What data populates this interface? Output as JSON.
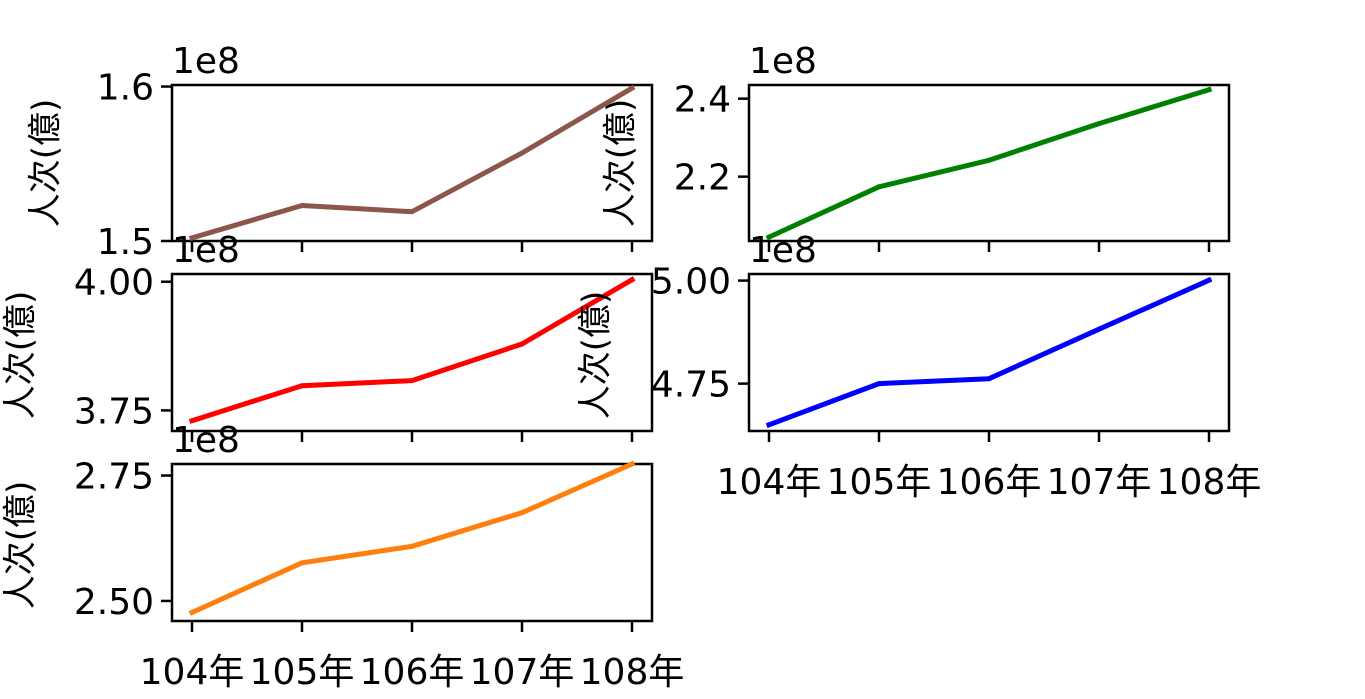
{
  "chart_data": [
    {
      "type": "line",
      "x": [
        "104年",
        "105年",
        "106年",
        "107年",
        "108年"
      ],
      "series": [
        {
          "values": [
            150200000,
            152300000,
            151900000,
            155700000,
            159900000
          ]
        }
      ],
      "color": "#8c564b",
      "ylabel": "人次(億)",
      "offset_text": "1e8",
      "yticks": [
        {
          "value": 150000000,
          "label": "1.5"
        },
        {
          "value": 160000000,
          "label": "1.6"
        }
      ],
      "ylim": [
        150000000,
        160100000
      ]
    },
    {
      "type": "line",
      "x": [
        "104年",
        "105年",
        "106年",
        "107年",
        "108年"
      ],
      "series": [
        {
          "values": [
            204500000,
            217400000,
            224200000,
            233600000,
            242300000
          ]
        }
      ],
      "color": "#008000",
      "ylabel": "人次(億)",
      "offset_text": "1e8",
      "yticks": [
        {
          "value": 220000000,
          "label": "2.2"
        },
        {
          "value": 240000000,
          "label": "2.4"
        }
      ],
      "ylim": [
        203500000,
        243500000
      ]
    },
    {
      "type": "line",
      "x": [
        "104年",
        "105年",
        "106年",
        "107年",
        "108年"
      ],
      "series": [
        {
          "values": [
            373000000,
            379800000,
            380800000,
            387900000,
            400400000
          ]
        }
      ],
      "color": "#ff0000",
      "ylabel": "人次(億)",
      "offset_text": "1e8",
      "yticks": [
        {
          "value": 375000000,
          "label": "3.75"
        },
        {
          "value": 400000000,
          "label": "4.00"
        }
      ],
      "ylim": [
        371000000,
        401500000
      ]
    },
    {
      "type": "line",
      "x": [
        "104年",
        "105年",
        "106年",
        "107年",
        "108年"
      ],
      "series": [
        {
          "values": [
            465000000,
            475000000,
            476200000,
            488200000,
            500100000
          ]
        }
      ],
      "color": "#0000ff",
      "ylabel": "人次(億)",
      "offset_text": "1e8",
      "yticks": [
        {
          "value": 475000000,
          "label": "4.75"
        },
        {
          "value": 500000000,
          "label": "5.00"
        }
      ],
      "ylim": [
        463500000,
        501600000
      ]
    },
    {
      "type": "line",
      "x": [
        "104年",
        "105年",
        "106年",
        "107年",
        "108年"
      ],
      "series": [
        {
          "values": [
            247700000,
            257600000,
            260900000,
            267600000,
            277300000
          ]
        }
      ],
      "color": "#ff7f0e",
      "ylabel": "人次(億)",
      "offset_text": "1e8",
      "yticks": [
        {
          "value": 250000000,
          "label": "2.50"
        },
        {
          "value": 275000000,
          "label": "2.75"
        }
      ],
      "ylim": [
        246000000,
        277300000
      ]
    }
  ]
}
